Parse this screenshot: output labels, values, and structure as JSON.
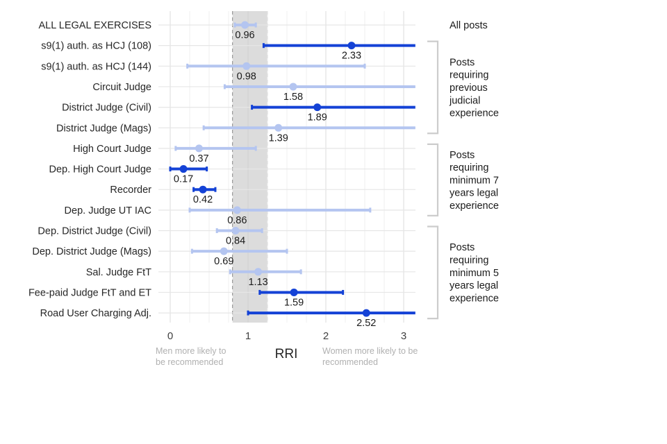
{
  "chart_data": {
    "type": "forest",
    "xlabel": "RRI",
    "xlim": [
      0,
      3.15
    ],
    "xticks": [
      0,
      1,
      2,
      3
    ],
    "ref_line": 1,
    "band": [
      0.8,
      1.25
    ],
    "note_left": "Men more likely to be recommended",
    "note_right": "Women more likely to be recommended",
    "colors": {
      "significant": "#1442d6",
      "not_significant": "#b4c5f0",
      "band": "#dcdcdc",
      "bracket": "#cccccc"
    },
    "rows": [
      {
        "label": "ALL LEGAL EXERCISES",
        "value": 0.96,
        "value_label": "0.96",
        "low": 0.83,
        "high": 1.1,
        "significant": false
      },
      {
        "label": "s9(1) auth. as HCJ (108)",
        "value": 2.33,
        "value_label": "2.33",
        "low": 1.2,
        "high": 3.15,
        "significant": true
      },
      {
        "label": "s9(1) auth. as HCJ (144)",
        "value": 0.98,
        "value_label": "0.98",
        "low": 0.22,
        "high": 2.5,
        "significant": false
      },
      {
        "label": "Circuit Judge",
        "value": 1.58,
        "value_label": "1.58",
        "low": 0.7,
        "high": 3.15,
        "significant": false
      },
      {
        "label": "District Judge (Civil)",
        "value": 1.89,
        "value_label": "1.89",
        "low": 1.05,
        "high": 3.15,
        "significant": true
      },
      {
        "label": "District Judge (Mags)",
        "value": 1.39,
        "value_label": "1.39",
        "low": 0.43,
        "high": 3.15,
        "significant": false
      },
      {
        "label": "High Court Judge",
        "value": 0.37,
        "value_label": "0.37",
        "low": 0.07,
        "high": 1.1,
        "significant": false
      },
      {
        "label": "Dep. High Court Judge",
        "value": 0.17,
        "value_label": "0.17",
        "low": 0.0,
        "high": 0.47,
        "significant": true
      },
      {
        "label": "Recorder",
        "value": 0.42,
        "value_label": "0.42",
        "low": 0.3,
        "high": 0.58,
        "significant": true
      },
      {
        "label": "Dep. Judge UT IAC",
        "value": 0.86,
        "value_label": "0.86",
        "low": 0.25,
        "high": 2.57,
        "significant": false
      },
      {
        "label": "Dep. District Judge (Civil)",
        "value": 0.84,
        "value_label": "0.84",
        "low": 0.6,
        "high": 1.18,
        "significant": false
      },
      {
        "label": "Dep. District Judge (Mags)",
        "value": 0.69,
        "value_label": "0.69",
        "low": 0.28,
        "high": 1.5,
        "significant": false
      },
      {
        "label": "Sal. Judge FtT",
        "value": 1.13,
        "value_label": "1.13",
        "low": 0.77,
        "high": 1.68,
        "significant": false
      },
      {
        "label": "Fee-paid Judge FtT and ET",
        "value": 1.59,
        "value_label": "1.59",
        "low": 1.15,
        "high": 2.22,
        "significant": true
      },
      {
        "label": "Road User Charging Adj.",
        "value": 2.52,
        "value_label": "2.52",
        "low": 1.0,
        "high": 3.15,
        "significant": true
      }
    ],
    "groups": [
      {
        "label": "All posts",
        "lines": [
          "All posts"
        ],
        "from_row": 0,
        "to_row": 0,
        "bracket": false
      },
      {
        "label": "Posts requiring previous judicial experience",
        "lines": [
          "Posts",
          "requiring",
          "previous",
          "judicial",
          "experience"
        ],
        "from_row": 1,
        "to_row": 5,
        "bracket": true
      },
      {
        "label": "Posts requiring minimum 7 years legal experience",
        "lines": [
          "Posts",
          "requiring",
          "minimum 7",
          "years legal",
          "experience"
        ],
        "from_row": 6,
        "to_row": 9,
        "bracket": true
      },
      {
        "label": "Posts requiring minimum 5 years legal experience",
        "lines": [
          "Posts",
          "requiring",
          "minimum 5",
          "years legal",
          "experience"
        ],
        "from_row": 10,
        "to_row": 14,
        "bracket": true
      }
    ]
  }
}
